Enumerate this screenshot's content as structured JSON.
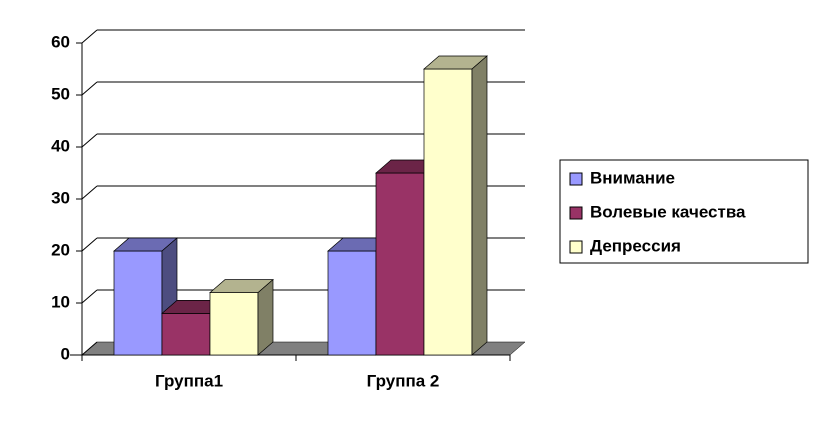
{
  "chart_data": {
    "type": "bar3d",
    "categories": [
      "Группа1",
      "Группа 2"
    ],
    "series": [
      {
        "name": "Внимание",
        "color": "#9999ff",
        "values": [
          20,
          20
        ]
      },
      {
        "name": "Волевые качества",
        "color": "#993366",
        "values": [
          8,
          35
        ]
      },
      {
        "name": "Депрессия",
        "color": "#ffffcc",
        "values": [
          12,
          55
        ]
      }
    ],
    "ylim": [
      0,
      60
    ],
    "yticks": [
      0,
      10,
      20,
      30,
      40,
      50,
      60
    ],
    "grid": true,
    "legend": "right"
  }
}
